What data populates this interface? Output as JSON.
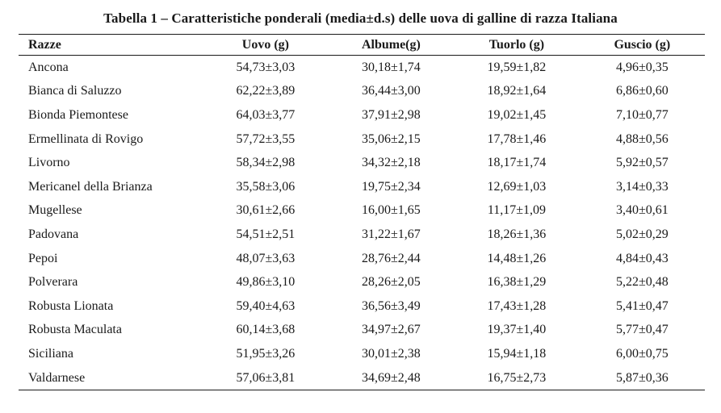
{
  "title": "Tabella 1 – Caratteristiche ponderali (media±d.s) delle uova di galline di razza Italiana",
  "headers": [
    "Razze",
    "Uovo (g)",
    "Albume(g)",
    "Tuorlo (g)",
    "Guscio (g)"
  ],
  "rows": [
    [
      "Ancona",
      "54,73±3,03",
      "30,18±1,74",
      "19,59±1,82",
      "4,96±0,35"
    ],
    [
      "Bianca di Saluzzo",
      "62,22±3,89",
      "36,44±3,00",
      "18,92±1,64",
      "6,86±0,60"
    ],
    [
      "Bionda Piemontese",
      "64,03±3,77",
      "37,91±2,98",
      "19,02±1,45",
      "7,10±0,77"
    ],
    [
      "Ermellinata di Rovigo",
      "57,72±3,55",
      "35,06±2,15",
      "17,78±1,46",
      "4,88±0,56"
    ],
    [
      "Livorno",
      "58,34±2,98",
      "34,32±2,18",
      "18,17±1,74",
      "5,92±0,57"
    ],
    [
      "Mericanel della Brianza",
      "35,58±3,06",
      "19,75±2,34",
      "12,69±1,03",
      "3,14±0,33"
    ],
    [
      "Mugellese",
      "30,61±2,66",
      "16,00±1,65",
      "11,17±1,09",
      "3,40±0,61"
    ],
    [
      "Padovana",
      "54,51±2,51",
      "31,22±1,67",
      "18,26±1,36",
      "5,02±0,29"
    ],
    [
      "Pepoi",
      "48,07±3,63",
      "28,76±2,44",
      "14,48±1,26",
      "4,84±0,43"
    ],
    [
      "Polverara",
      "49,86±3,10",
      "28,26±2,05",
      "16,38±1,29",
      "5,22±0,48"
    ],
    [
      "Robusta Lionata",
      "59,40±4,63",
      "36,56±3,49",
      "17,43±1,28",
      "5,41±0,47"
    ],
    [
      "Robusta Maculata",
      "60,14±3,68",
      "34,97±2,67",
      "19,37±1,40",
      "5,77±0,47"
    ],
    [
      "Siciliana",
      "51,95±3,26",
      "30,01±2,38",
      "15,94±1,18",
      "6,00±0,75"
    ],
    [
      "Valdarnese",
      "57,06±3,81",
      "34,69±2,48",
      "16,75±2,73",
      "5,87±0,36"
    ]
  ]
}
